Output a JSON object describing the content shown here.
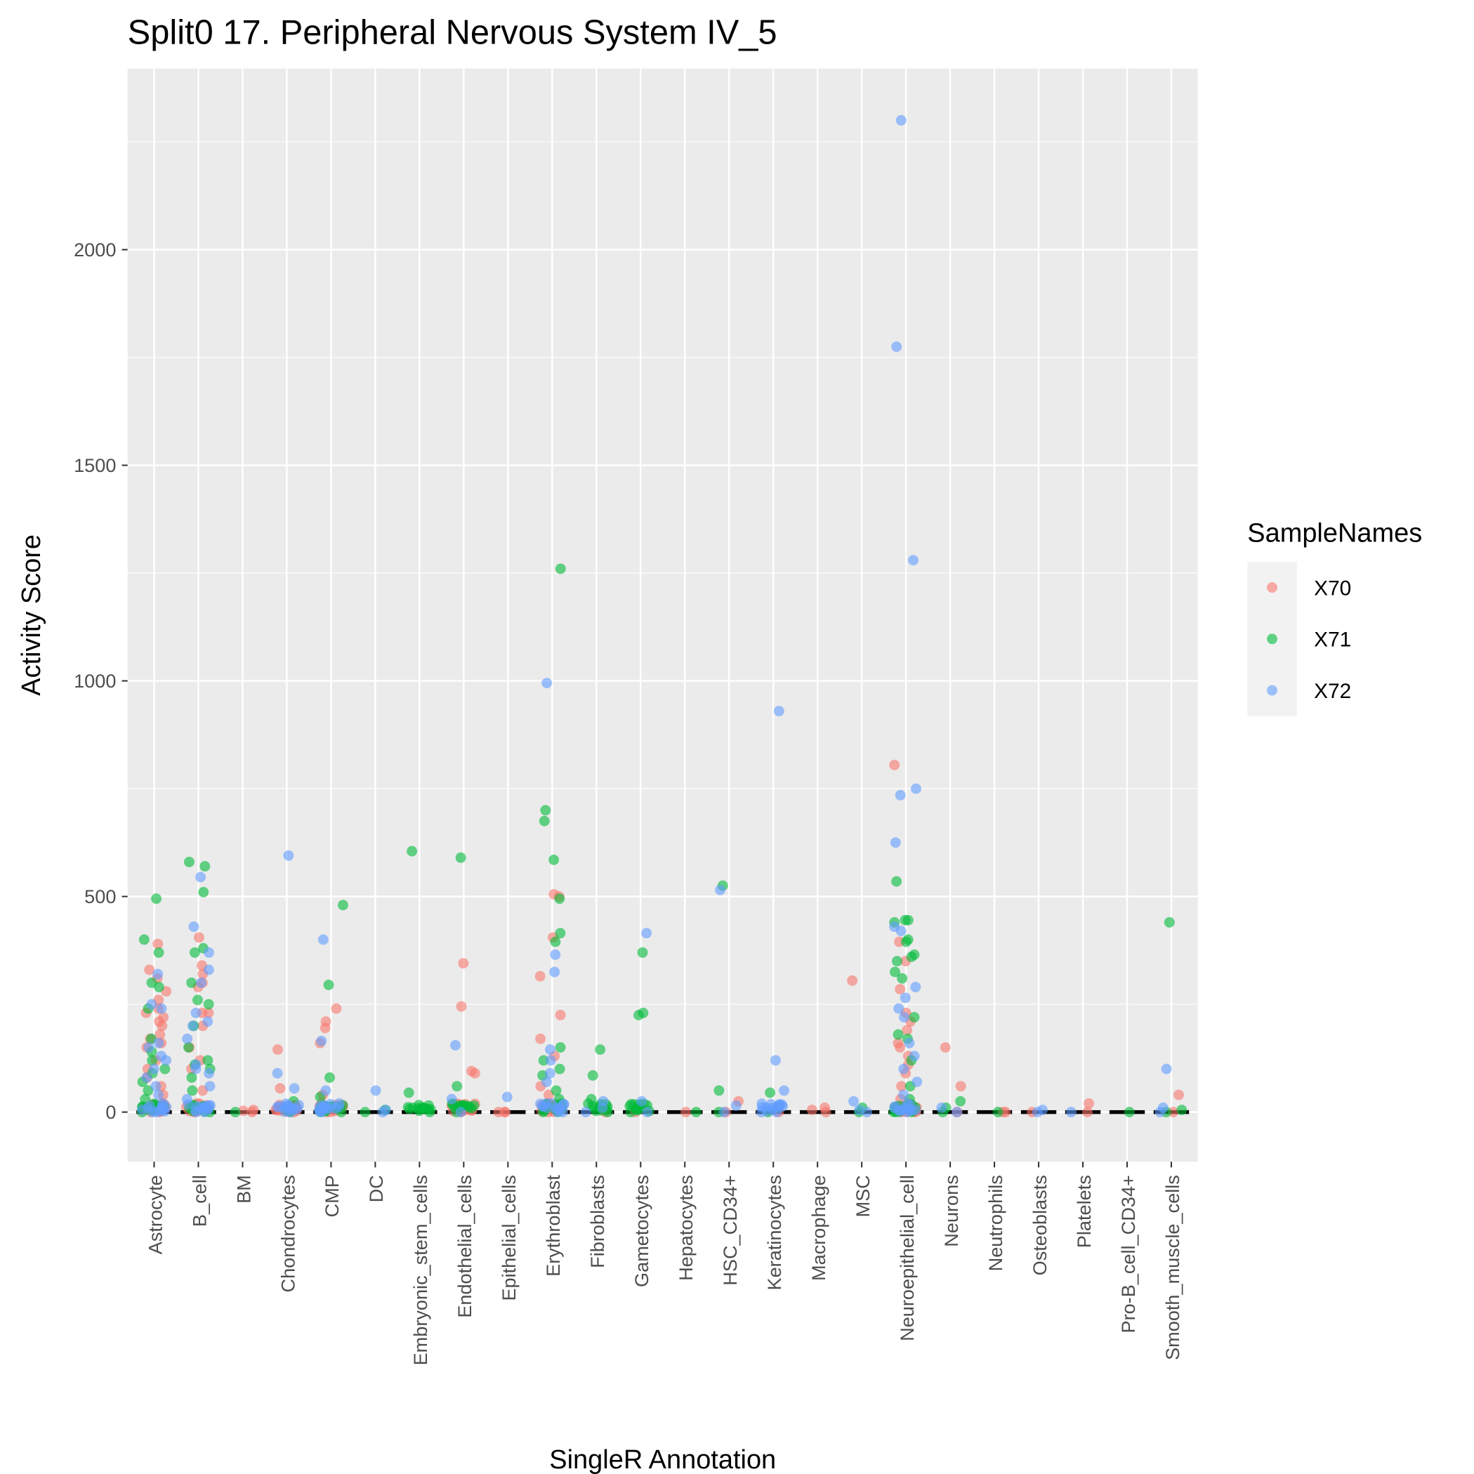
{
  "chart_data": {
    "type": "scatter",
    "title": "Split0 17. Peripheral Nervous System IV_5",
    "xlabel": "SingleR Annotation",
    "ylabel": "Activity Score",
    "ylim": [
      -115,
      2420
    ],
    "yticks": [
      0,
      500,
      1000,
      1500,
      2000
    ],
    "grid": true,
    "legend": {
      "title": "SampleNames",
      "placement": "right"
    },
    "series": [
      {
        "name": "X70",
        "color": "#F8766D"
      },
      {
        "name": "X71",
        "color": "#00BA38"
      },
      {
        "name": "X72",
        "color": "#619CFF"
      }
    ],
    "categories": [
      "Astrocyte",
      "B_cell",
      "BM",
      "Chondrocytes",
      "CMP",
      "DC",
      "Embryonic_stem_cells",
      "Endothelial_cells",
      "Epithelial_cells",
      "Erythroblast",
      "Fibroblasts",
      "Gametocytes",
      "Hepatocytes",
      "HSC_CD34+",
      "Keratinocytes",
      "Macrophage",
      "MSC",
      "Neuroepithelial_cell",
      "Neurons",
      "Neutrophils",
      "Osteoblasts",
      "Platelets",
      "Pro-B_cell_CD34+",
      "Smooth_muscle_cells"
    ],
    "values": {
      "Astrocyte": {
        "X70": [
          390,
          330,
          310,
          280,
          260,
          240,
          230,
          220,
          210,
          200,
          180,
          170,
          160,
          150,
          120,
          100,
          80,
          60,
          40,
          20,
          10,
          5,
          0,
          0
        ],
        "X71": [
          495,
          400,
          370,
          300,
          290,
          240,
          170,
          140,
          120,
          100,
          90,
          70,
          50,
          30,
          10,
          0
        ],
        "X72": [
          320,
          250,
          240,
          160,
          150,
          130,
          120,
          100,
          80,
          60,
          40,
          20,
          0
        ]
      },
      "B_cell": {
        "X70": [
          405,
          340,
          320,
          300,
          290,
          230,
          230,
          200,
          150,
          120,
          100,
          50,
          20,
          0
        ],
        "X71": [
          580,
          570,
          510,
          380,
          370,
          300,
          260,
          250,
          200,
          150,
          120,
          110,
          100,
          80,
          50,
          10,
          0
        ],
        "X72": [
          545,
          430,
          370,
          330,
          300,
          230,
          210,
          200,
          170,
          110,
          100,
          90,
          60,
          30,
          0
        ]
      },
      "BM": {
        "X70": [
          5,
          3,
          0
        ],
        "X71": [
          0
        ],
        "X72": []
      },
      "Chondrocytes": {
        "X70": [
          145,
          55,
          10,
          0
        ],
        "X71": [
          25,
          5,
          0
        ],
        "X72": [
          595,
          90,
          55,
          10,
          0
        ]
      },
      "CMP": {
        "X70": [
          240,
          210,
          195,
          160,
          40,
          10,
          0
        ],
        "X71": [
          480,
          295,
          80,
          35,
          0
        ],
        "X72": [
          400,
          165,
          50,
          20,
          0
        ]
      },
      "DC": {
        "X70": [],
        "X71": [
          5,
          0
        ],
        "X72": [
          50,
          5,
          0
        ]
      },
      "Embryonic_stem_cells": {
        "X70": [],
        "X71": [
          605,
          45,
          10,
          0
        ],
        "X72": []
      },
      "Endothelial_cells": {
        "X70": [
          345,
          245,
          95,
          90,
          10,
          0
        ],
        "X71": [
          590,
          60,
          15,
          0
        ],
        "X72": [
          155,
          30,
          0
        ]
      },
      "Epithelial_cells": {
        "X70": [
          0,
          0,
          0
        ],
        "X71": [],
        "X72": [
          35
        ]
      },
      "Erythroblast": {
        "X70": [
          505,
          500,
          405,
          315,
          225,
          170,
          130,
          60,
          40,
          0
        ],
        "X71": [
          1260,
          700,
          675,
          585,
          495,
          415,
          395,
          150,
          120,
          100,
          85,
          50,
          30,
          0
        ],
        "X72": [
          995,
          365,
          325,
          145,
          120,
          90,
          70,
          20,
          0
        ]
      },
      "Fibroblasts": {
        "X70": [
          5,
          0
        ],
        "X71": [
          145,
          85,
          30,
          0
        ],
        "X72": [
          25,
          10,
          0
        ]
      },
      "Gametocytes": {
        "X70": [
          0
        ],
        "X71": [
          370,
          230,
          225,
          0
        ],
        "X72": [
          415,
          25,
          0
        ]
      },
      "Hepatocytes": {
        "X70": [
          0
        ],
        "X71": [
          0
        ],
        "X72": []
      },
      "HSC_CD34+": {
        "X70": [
          25,
          0
        ],
        "X71": [
          525,
          50,
          0
        ],
        "X72": [
          515,
          15,
          0
        ]
      },
      "Keratinocytes": {
        "X70": [
          0
        ],
        "X71": [
          45,
          10,
          0
        ],
        "X72": [
          930,
          120,
          50,
          10,
          0
        ]
      },
      "Macrophage": {
        "X70": [
          10,
          5,
          0
        ],
        "X71": [],
        "X72": []
      },
      "MSC": {
        "X70": [
          305
        ],
        "X71": [
          10,
          0
        ],
        "X72": [
          25,
          5,
          0
        ]
      },
      "Neuroepithelial_cell": {
        "X70": [
          805,
          395,
          350,
          285,
          230,
          210,
          190,
          160,
          150,
          130,
          110,
          90,
          60,
          30,
          0
        ],
        "X71": [
          535,
          445,
          445,
          440,
          400,
          395,
          365,
          360,
          350,
          325,
          310,
          220,
          180,
          170,
          120,
          60,
          30,
          0
        ],
        "X72": [
          2300,
          1775,
          1280,
          750,
          735,
          625,
          430,
          420,
          290,
          265,
          240,
          220,
          160,
          130,
          100,
          70,
          40,
          0
        ]
      },
      "Neurons": {
        "X70": [
          150,
          60,
          0
        ],
        "X71": [
          25,
          10,
          0
        ],
        "X72": [
          10,
          0
        ]
      },
      "Neutrophils": {
        "X70": [
          0,
          0
        ],
        "X71": [
          0
        ],
        "X72": []
      },
      "Osteoblasts": {
        "X70": [
          0
        ],
        "X71": [],
        "X72": [
          5,
          0
        ]
      },
      "Platelets": {
        "X70": [
          20,
          0
        ],
        "X71": [],
        "X72": [
          0
        ]
      },
      "Pro-B_cell_CD34+": {
        "X70": [],
        "X71": [
          0
        ],
        "X72": []
      },
      "Smooth_muscle_cells": {
        "X70": [
          40,
          0
        ],
        "X71": [
          440,
          5,
          0
        ],
        "X72": [
          100,
          10,
          0
        ]
      }
    }
  }
}
